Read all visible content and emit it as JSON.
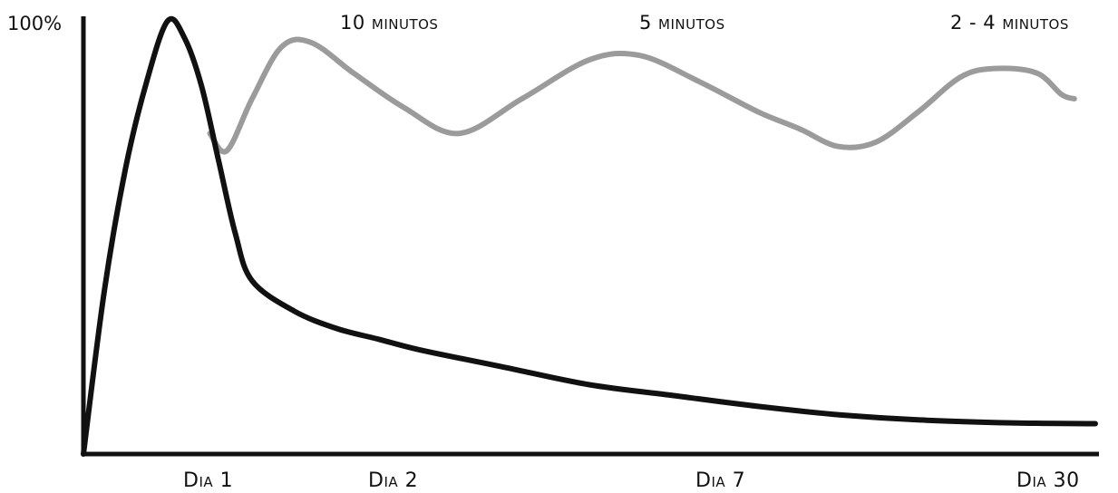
{
  "chart_data": {
    "type": "line",
    "title": "",
    "xlabel": "",
    "ylabel": "",
    "y_axis": {
      "max_label": "100%",
      "ylim": [
        0,
        100
      ]
    },
    "x_axis": {
      "ticks": [
        {
          "label": "Dia 1"
        },
        {
          "label": "Dia 2"
        },
        {
          "label": "Dia 7"
        },
        {
          "label": "Dia 30"
        }
      ]
    },
    "annotations": [
      {
        "text": "10 minutos"
      },
      {
        "text": "5 minutos"
      },
      {
        "text": "2 - 4 minutos"
      }
    ],
    "grid": false,
    "legend": "none",
    "colors": {
      "forgetting_curve": "#111111",
      "review_curve": "#9b9b9b",
      "axes": "#111111"
    },
    "series": [
      {
        "values": [
          [
            0,
            0
          ],
          [
            0.25,
            38
          ],
          [
            0.5,
            66
          ],
          [
            0.75,
            86
          ],
          [
            1.0,
            100
          ],
          [
            1.2,
            96
          ],
          [
            1.4,
            85
          ],
          [
            1.6,
            68
          ],
          [
            1.8,
            51
          ],
          [
            2.0,
            40
          ],
          [
            2.5,
            33
          ],
          [
            3.0,
            29
          ],
          [
            3.5,
            26.5
          ],
          [
            4.0,
            24
          ],
          [
            5.0,
            20
          ],
          [
            6.0,
            16
          ],
          [
            7.0,
            13.5
          ],
          [
            8.0,
            11
          ],
          [
            9.0,
            9
          ],
          [
            10.0,
            7.8
          ],
          [
            11.0,
            7.2
          ],
          [
            12.0,
            7
          ]
        ]
      },
      {
        "values": [
          [
            1.5,
            74
          ],
          [
            1.7,
            70
          ],
          [
            2.0,
            82
          ],
          [
            2.35,
            94
          ],
          [
            2.7,
            95
          ],
          [
            3.2,
            88
          ],
          [
            3.8,
            80
          ],
          [
            4.45,
            74
          ],
          [
            5.2,
            82
          ],
          [
            6.0,
            91
          ],
          [
            6.6,
            92
          ],
          [
            7.3,
            86
          ],
          [
            8.0,
            79
          ],
          [
            8.5,
            75
          ],
          [
            8.95,
            71
          ],
          [
            9.4,
            72
          ],
          [
            9.9,
            79
          ],
          [
            10.4,
            87
          ],
          [
            10.8,
            89
          ],
          [
            11.3,
            88
          ],
          [
            11.6,
            83
          ],
          [
            11.75,
            82
          ]
        ]
      }
    ]
  }
}
